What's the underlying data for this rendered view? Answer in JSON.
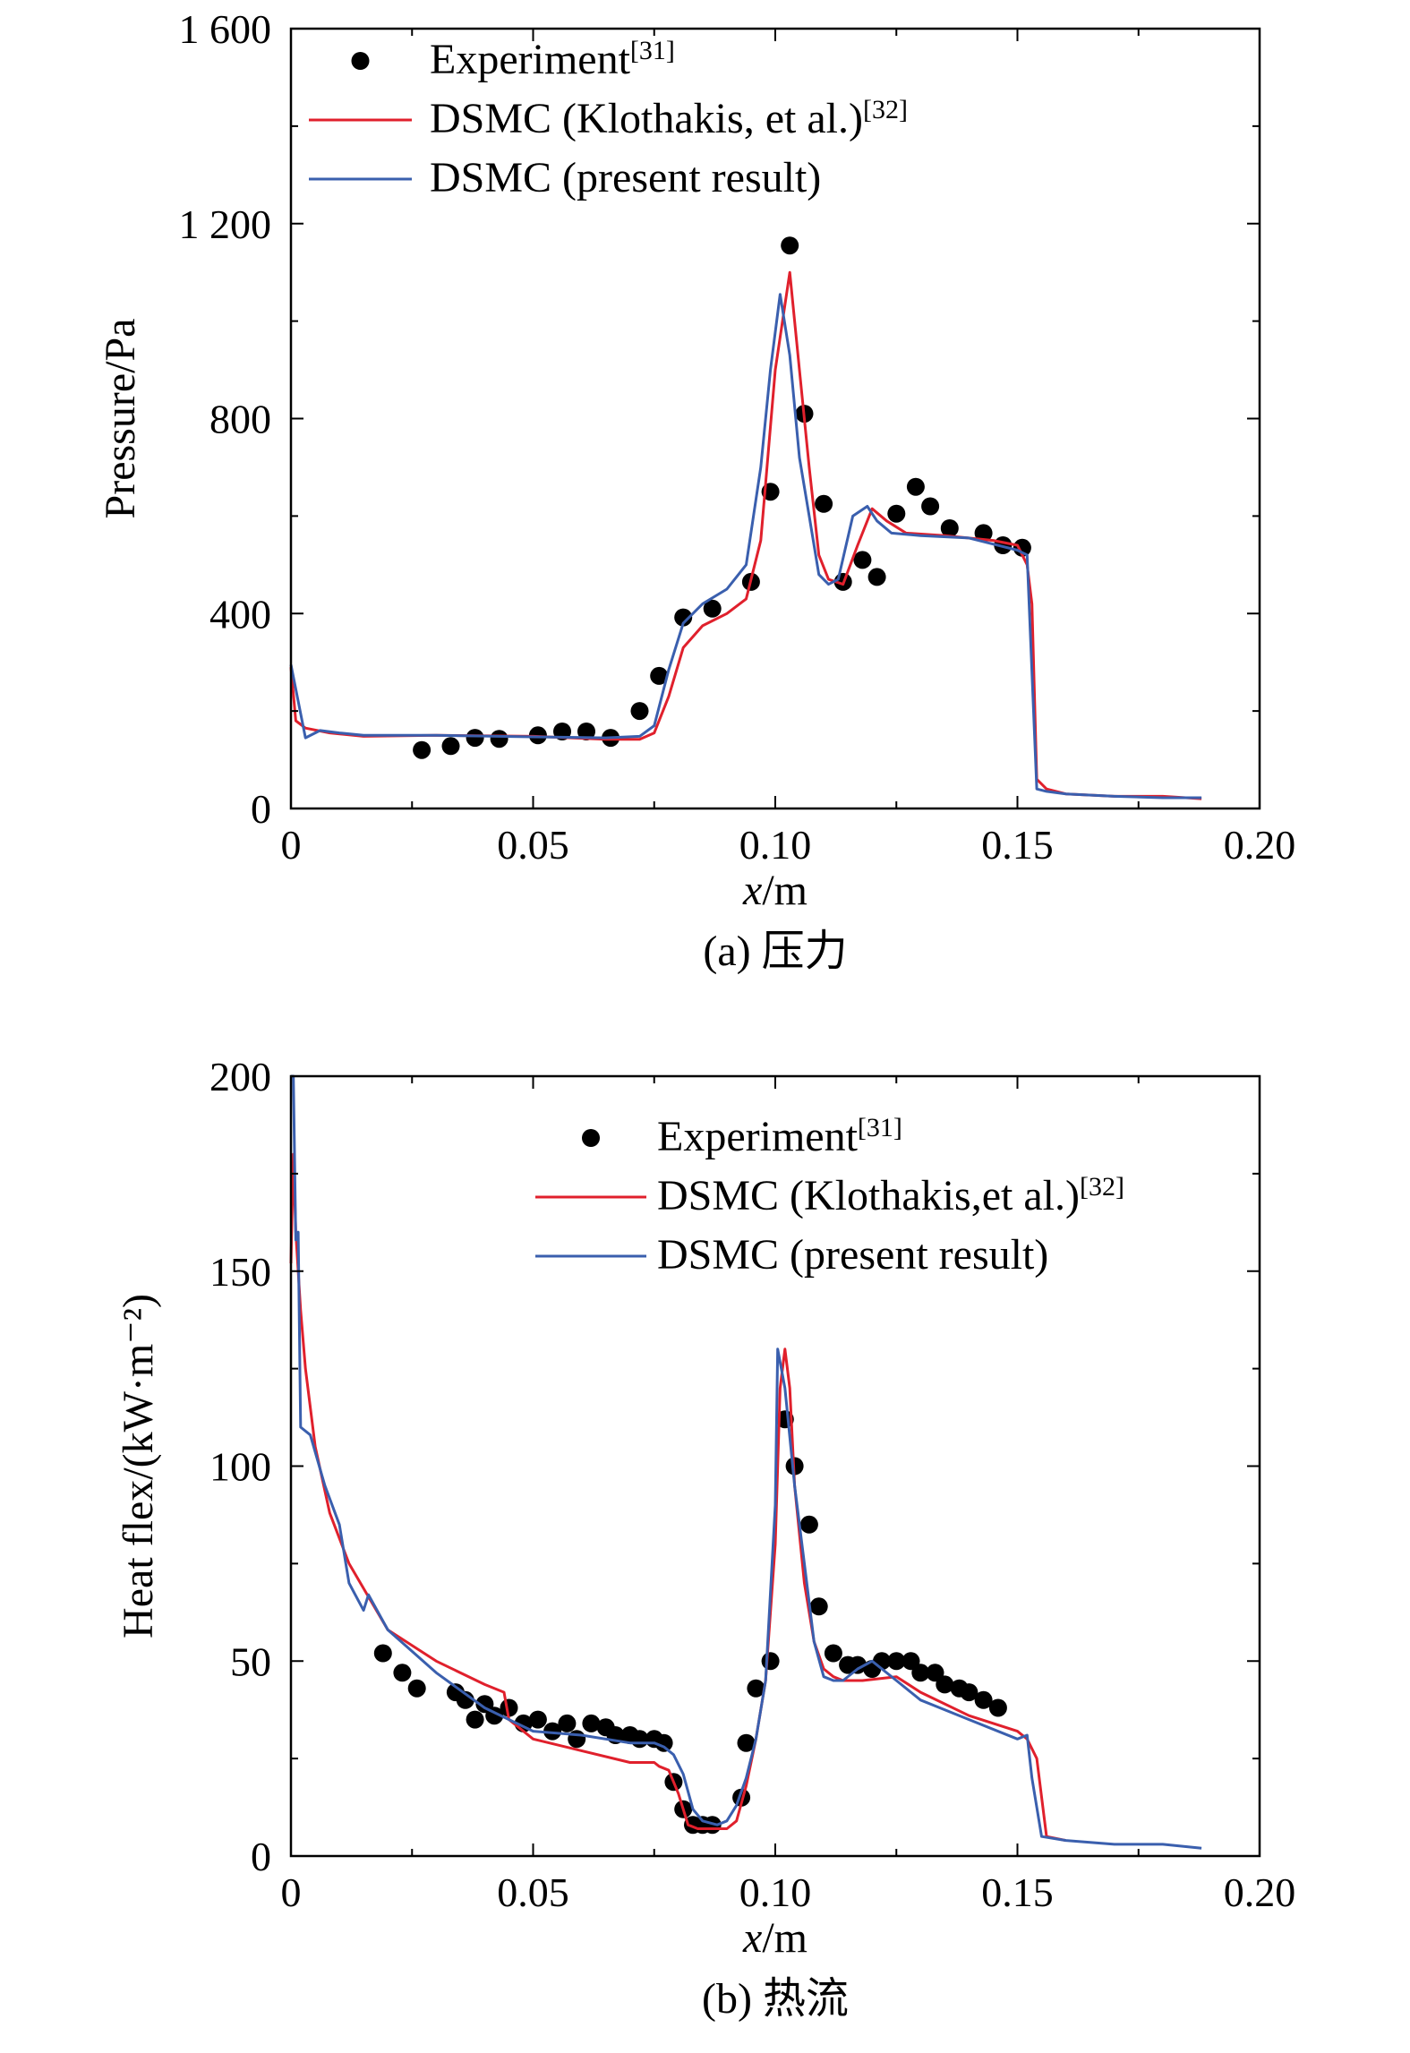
{
  "colors": {
    "experiment": "#000000",
    "klothakis": "#e0202c",
    "present": "#3a5fae"
  },
  "chart_data": [
    {
      "type": "line",
      "caption": "(a) 压力",
      "xlabel_italic": "x",
      "xlabel_unit": "/m",
      "ylabel": "Pressure/Pa",
      "xlim": [
        0,
        0.2
      ],
      "ylim": [
        0,
        1600
      ],
      "xticks": [
        0,
        0.05,
        0.1,
        0.15,
        0.2
      ],
      "xtick_labels": [
        "0",
        "0.05",
        "0.10",
        "0.15",
        "0.20"
      ],
      "yticks": [
        0,
        400,
        800,
        1200,
        1600
      ],
      "ytick_labels": [
        "0",
        "400",
        "800",
        "1 200",
        "1 600"
      ],
      "legend_position": "top-left",
      "series": [
        {
          "name": "Experiment",
          "ref": "[31]",
          "kind": "scatter",
          "color": "#000000",
          "x": [
            0.027,
            0.033,
            0.038,
            0.043,
            0.051,
            0.056,
            0.061,
            0.066,
            0.072,
            0.076,
            0.081,
            0.087,
            0.095,
            0.099,
            0.103,
            0.106,
            0.11,
            0.114,
            0.118,
            0.121,
            0.125,
            0.129,
            0.132,
            0.136,
            0.143,
            0.147,
            0.151
          ],
          "y": [
            120,
            128,
            145,
            143,
            150,
            158,
            158,
            145,
            200,
            272,
            392,
            410,
            465,
            650,
            1155,
            810,
            625,
            465,
            510,
            475,
            605,
            660,
            620,
            575,
            565,
            540,
            535
          ]
        },
        {
          "name": "DSMC (Klothakis, et al.)",
          "ref": "[32]",
          "kind": "line",
          "color": "#e0202c",
          "x": [
            0,
            0.001,
            0.003,
            0.008,
            0.015,
            0.03,
            0.05,
            0.065,
            0.072,
            0.075,
            0.078,
            0.081,
            0.085,
            0.09,
            0.094,
            0.097,
            0.1,
            0.103,
            0.105,
            0.107,
            0.109,
            0.111,
            0.114,
            0.117,
            0.12,
            0.123,
            0.127,
            0.135,
            0.145,
            0.15,
            0.152,
            0.153,
            0.154,
            0.156,
            0.16,
            0.17,
            0.18,
            0.188
          ],
          "y": [
            290,
            180,
            165,
            155,
            148,
            150,
            148,
            142,
            142,
            155,
            230,
            330,
            375,
            400,
            430,
            550,
            900,
            1100,
            900,
            700,
            520,
            470,
            460,
            540,
            615,
            590,
            565,
            560,
            550,
            540,
            500,
            420,
            60,
            40,
            30,
            25,
            25,
            20
          ]
        },
        {
          "name": "DSMC (present result)",
          "ref": "",
          "kind": "line",
          "color": "#3a5fae",
          "x": [
            0,
            0.003,
            0.006,
            0.01,
            0.015,
            0.03,
            0.05,
            0.065,
            0.072,
            0.075,
            0.078,
            0.081,
            0.085,
            0.09,
            0.094,
            0.097,
            0.099,
            0.101,
            0.103,
            0.105,
            0.107,
            0.109,
            0.111,
            0.113,
            0.116,
            0.119,
            0.121,
            0.124,
            0.13,
            0.14,
            0.15,
            0.152,
            0.154,
            0.156,
            0.16,
            0.17,
            0.18,
            0.188
          ],
          "y": [
            295,
            145,
            160,
            155,
            150,
            150,
            147,
            145,
            148,
            170,
            285,
            380,
            420,
            450,
            500,
            700,
            900,
            1055,
            930,
            720,
            600,
            480,
            460,
            470,
            600,
            620,
            590,
            565,
            560,
            555,
            530,
            520,
            40,
            35,
            30,
            25,
            22,
            22
          ]
        }
      ]
    },
    {
      "type": "line",
      "caption": "(b) 热流",
      "xlabel_italic": "x",
      "xlabel_unit": "/m",
      "ylabel": "Heat flex/(kW·m⁻²)",
      "xlim": [
        0,
        0.2
      ],
      "ylim": [
        0,
        200
      ],
      "xticks": [
        0,
        0.05,
        0.1,
        0.15,
        0.2
      ],
      "xtick_labels": [
        "0",
        "0.05",
        "0.10",
        "0.15",
        "0.20"
      ],
      "yticks": [
        0,
        50,
        100,
        150,
        200
      ],
      "ytick_labels": [
        "0",
        "50",
        "100",
        "150",
        "200"
      ],
      "legend_position": "top-right",
      "series": [
        {
          "name": "Experiment",
          "ref": "[31]",
          "kind": "scatter",
          "color": "#000000",
          "x": [
            0.019,
            0.023,
            0.026,
            0.034,
            0.036,
            0.038,
            0.04,
            0.042,
            0.045,
            0.048,
            0.051,
            0.054,
            0.057,
            0.059,
            0.062,
            0.065,
            0.067,
            0.07,
            0.072,
            0.075,
            0.077,
            0.079,
            0.081,
            0.083,
            0.085,
            0.087,
            0.093,
            0.094,
            0.096,
            0.099,
            0.102,
            0.104,
            0.107,
            0.109,
            0.112,
            0.115,
            0.117,
            0.12,
            0.122,
            0.125,
            0.128,
            0.13,
            0.133,
            0.135,
            0.138,
            0.14,
            0.143,
            0.146
          ],
          "y": [
            52,
            47,
            43,
            42,
            40,
            35,
            39,
            36,
            38,
            34,
            35,
            32,
            34,
            30,
            34,
            33,
            31,
            31,
            30,
            30,
            29,
            19,
            12,
            8,
            8,
            8,
            15,
            29,
            43,
            50,
            112,
            100,
            85,
            64,
            52,
            49,
            49,
            48,
            50,
            50,
            50,
            47,
            47,
            44,
            43,
            42,
            40,
            38
          ]
        },
        {
          "name": "DSMC (Klothakis,et al.)",
          "ref": "[32]",
          "kind": "line",
          "color": "#e0202c",
          "x": [
            0,
            0.0005,
            0.001,
            0.002,
            0.003,
            0.005,
            0.008,
            0.012,
            0.02,
            0.03,
            0.04,
            0.044,
            0.045,
            0.05,
            0.06,
            0.07,
            0.075,
            0.076,
            0.078,
            0.08,
            0.082,
            0.084,
            0.086,
            0.088,
            0.09,
            0.092,
            0.094,
            0.096,
            0.098,
            0.1,
            0.101,
            0.102,
            0.103,
            0.104,
            0.106,
            0.108,
            0.11,
            0.112,
            0.114,
            0.118,
            0.125,
            0.13,
            0.14,
            0.15,
            0.152,
            0.154,
            0.156,
            0.16
          ],
          "y": [
            152,
            180,
            160,
            140,
            125,
            105,
            88,
            75,
            58,
            50,
            44,
            42,
            35,
            30,
            27,
            24,
            24,
            23,
            22,
            16,
            8,
            7,
            7,
            7,
            7,
            9,
            18,
            30,
            45,
            80,
            120,
            130,
            120,
            95,
            70,
            55,
            48,
            46,
            45,
            45,
            46,
            42,
            36,
            32,
            30,
            25,
            5,
            4
          ]
        },
        {
          "name": "DSMC (present result)",
          "ref": "",
          "kind": "line",
          "color": "#3a5fae",
          "x": [
            0,
            0.0005,
            0.001,
            0.0015,
            0.002,
            0.004,
            0.007,
            0.01,
            0.012,
            0.015,
            0.016,
            0.02,
            0.03,
            0.04,
            0.05,
            0.06,
            0.07,
            0.075,
            0.077,
            0.079,
            0.081,
            0.083,
            0.085,
            0.088,
            0.09,
            0.092,
            0.094,
            0.096,
            0.098,
            0.1,
            0.1005,
            0.102,
            0.104,
            0.106,
            0.108,
            0.11,
            0.112,
            0.114,
            0.117,
            0.12,
            0.125,
            0.13,
            0.14,
            0.15,
            0.152,
            0.153,
            0.155,
            0.16,
            0.17,
            0.18,
            0.188
          ],
          "y": [
            200,
            200,
            158,
            160,
            110,
            108,
            95,
            85,
            70,
            63,
            67,
            58,
            47,
            38,
            32,
            31,
            29,
            29,
            28,
            26,
            21,
            12,
            9,
            8,
            9,
            13,
            20,
            30,
            45,
            90,
            130,
            120,
            95,
            75,
            55,
            46,
            45,
            45,
            48,
            50,
            45,
            40,
            35,
            30,
            31,
            20,
            5,
            4,
            3,
            3,
            2
          ]
        }
      ]
    }
  ]
}
